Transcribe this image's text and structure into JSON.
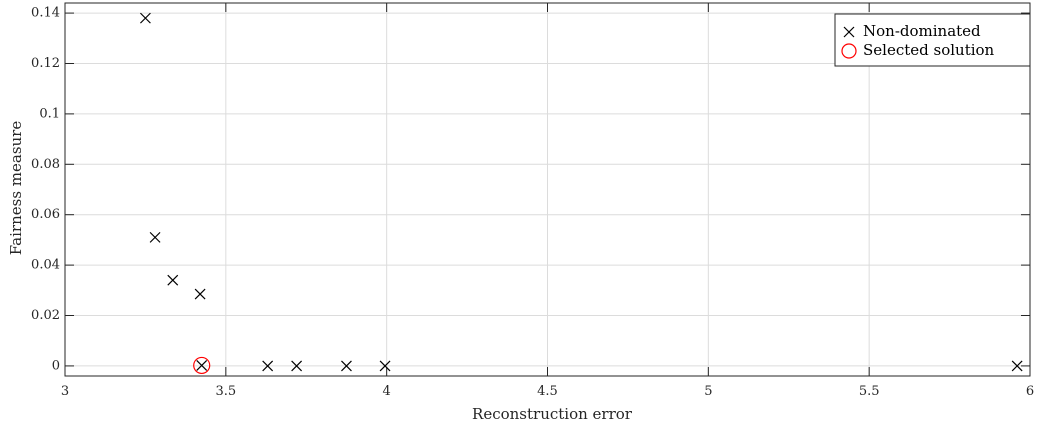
{
  "chart_data": {
    "type": "scatter",
    "title": "",
    "xlabel": "Reconstruction error",
    "ylabel": "Fairness measure",
    "xlim": [
      3,
      6
    ],
    "ylim": [
      -0.004,
      0.144
    ],
    "x_ticks": [
      3,
      3.5,
      4,
      4.5,
      5,
      5.5,
      6
    ],
    "x_tick_labels": [
      "3",
      "3.5",
      "4",
      "4.5",
      "5",
      "5.5",
      "6"
    ],
    "y_ticks": [
      0,
      0.02,
      0.04,
      0.06,
      0.08,
      0.1,
      0.12,
      0.14
    ],
    "y_tick_labels": [
      "0",
      "0.02",
      "0.04",
      "0.06",
      "0.08",
      "0.1",
      "0.12",
      "0.14"
    ],
    "grid": true,
    "legend_position": "top-right",
    "series": [
      {
        "name": "Non-dominated",
        "marker": "x",
        "color": "#000000",
        "points": [
          {
            "x": 3.25,
            "y": 0.138
          },
          {
            "x": 3.28,
            "y": 0.051
          },
          {
            "x": 3.335,
            "y": 0.034
          },
          {
            "x": 3.42,
            "y": 0.0285
          },
          {
            "x": 3.425,
            "y": 0.0002
          },
          {
            "x": 3.63,
            "y": 0.0
          },
          {
            "x": 3.72,
            "y": 0.0
          },
          {
            "x": 3.875,
            "y": 0.0
          },
          {
            "x": 3.995,
            "y": 0.0
          },
          {
            "x": 5.96,
            "y": 0.0
          }
        ]
      },
      {
        "name": "Selected solution",
        "marker": "circle",
        "color": "#ff0000",
        "points": [
          {
            "x": 3.425,
            "y": 0.0002
          }
        ]
      }
    ]
  }
}
